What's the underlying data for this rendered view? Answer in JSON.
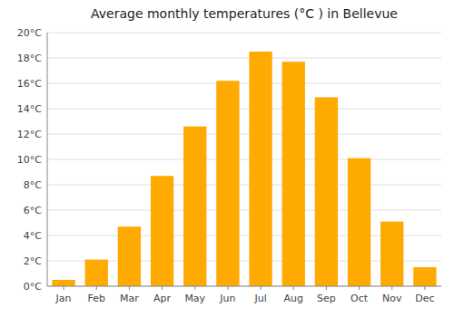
{
  "chart_data": {
    "type": "bar",
    "title": "Average monthly temperatures (°C ) in Bellevue",
    "categories": [
      "Jan",
      "Feb",
      "Mar",
      "Apr",
      "May",
      "Jun",
      "Jul",
      "Aug",
      "Sep",
      "Oct",
      "Nov",
      "Dec"
    ],
    "values": [
      0.5,
      2.1,
      4.7,
      8.7,
      12.6,
      16.2,
      18.5,
      17.7,
      14.9,
      10.1,
      5.1,
      1.5
    ],
    "color": "#FFAA00",
    "ylim": [
      0,
      20
    ],
    "yticks": [
      {
        "value": 0,
        "label": "0°C"
      },
      {
        "value": 2,
        "label": "2°C"
      },
      {
        "value": 4,
        "label": "4°C"
      },
      {
        "value": 6,
        "label": "6°C"
      },
      {
        "value": 8,
        "label": "8°C"
      },
      {
        "value": 10,
        "label": "10°C"
      },
      {
        "value": 12,
        "label": "12°C"
      },
      {
        "value": 14,
        "label": "14°C"
      },
      {
        "value": 16,
        "label": "16°C"
      },
      {
        "value": 18,
        "label": "18°C"
      },
      {
        "value": 20,
        "label": "20°C"
      }
    ],
    "grid": true
  }
}
